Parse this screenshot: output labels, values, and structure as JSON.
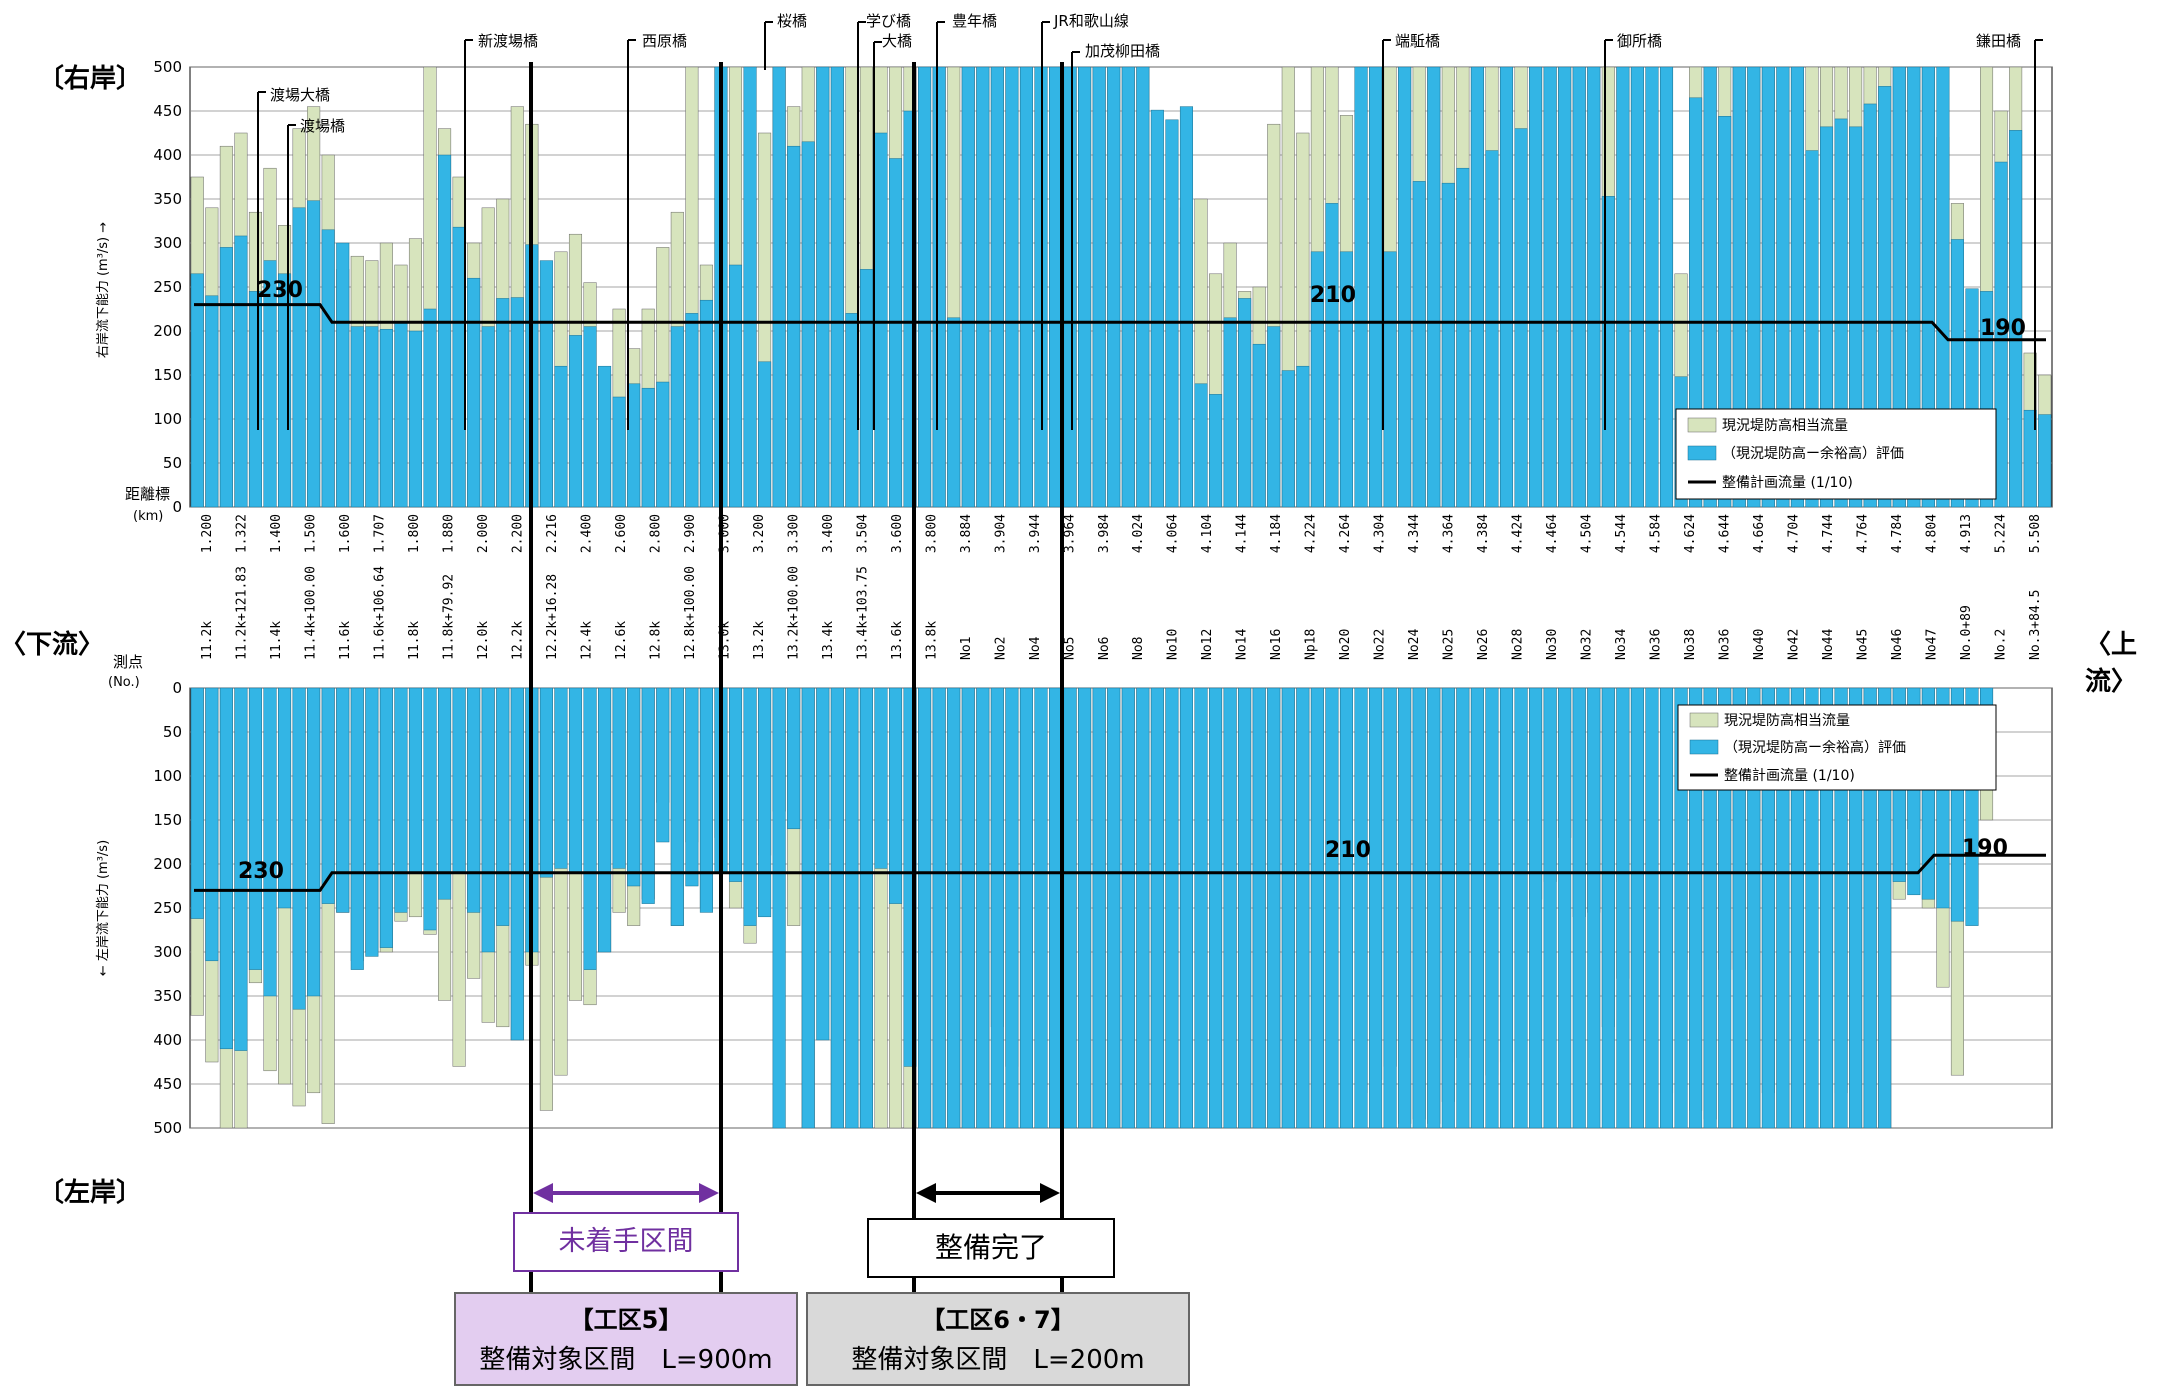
{
  "labels": {
    "right_bank": "〔右岸〕",
    "left_bank": "〔左岸〕",
    "downstream": "〈下流〉",
    "upstream": "〈上流〉",
    "distance_header": "距離標",
    "distance_unit": "(km)",
    "survey_header": "測点",
    "survey_unit": "(No.)"
  },
  "boxes": {
    "unstarted": "未着手区間",
    "completed": "整備完了",
    "zone5_line1": "【工区5】",
    "zone5_line2": "整備対象区間　L=900m",
    "zone67_line1": "【工区6・7】",
    "zone67_line2": "整備対象区間　L=200m"
  },
  "colors": {
    "bar_blue": "#33b5e5",
    "bar_green": "#d7e4bd",
    "purple": "#7030a0",
    "purple_fill": "#e3cdf0",
    "gray_fill": "#d9d9d9"
  },
  "chart_data": [
    {
      "type": "bar",
      "panel": "right_bank",
      "ylabel": "右岸流下能力 (m³/s) →",
      "ylim": [
        0,
        500
      ],
      "yticks": [
        0,
        50,
        100,
        150,
        200,
        250,
        300,
        350,
        400,
        450,
        500
      ],
      "xlabel": "距離標 (km)",
      "x_tick_labels": [
        "1.200",
        "1.322",
        "1.400",
        "1.500",
        "1.600",
        "1.707",
        "1.800",
        "1.880",
        "2.000",
        "2.200",
        "2.216",
        "2.400",
        "2.600",
        "2.800",
        "2.900",
        "3.000",
        "3.200",
        "3.300",
        "3.400",
        "3.504",
        "3.600",
        "3.800",
        "3.884",
        "3.904",
        "3.944",
        "3.964",
        "3.984",
        "4.024",
        "4.064",
        "4.104",
        "4.144",
        "4.184",
        "4.224",
        "4.264",
        "4.304",
        "4.344",
        "4.364",
        "4.384",
        "4.424",
        "4.464",
        "4.504",
        "4.544",
        "4.584",
        "4.624",
        "4.644",
        "4.664",
        "4.704",
        "4.744",
        "4.764",
        "4.784",
        "4.804",
        "4.913",
        "5.224",
        "5.508"
      ],
      "bridges": [
        "渡場大橋",
        "渡場橋",
        "新渡場橋",
        "西原橋",
        "桜橋",
        "学び橋",
        "大橋",
        "豊年橋",
        "JR和歌山線",
        "加茂柳田橋",
        "端駈橋",
        "御所橋",
        "鎌田橋"
      ],
      "series": [
        {
          "name": "現況堤防高相当流量",
          "values": [
            375,
            340,
            410,
            425,
            335,
            385,
            320,
            430,
            455,
            400,
            270,
            285,
            280,
            300,
            275,
            305,
            500,
            430,
            375,
            300,
            340,
            350,
            455,
            435,
            250,
            290,
            310,
            255,
            150,
            225,
            180,
            225,
            295,
            335,
            500,
            275,
            500,
            500,
            350,
            425,
            500,
            455,
            500,
            500,
            500,
            500,
            500,
            500,
            500,
            500,
            500,
            500,
            500,
            500,
            500,
            500,
            500,
            500,
            500,
            500,
            500,
            500,
            500,
            500,
            500,
            500,
            255,
            235,
            340,
            350,
            265,
            300,
            245,
            250,
            435,
            500,
            425,
            500,
            500,
            445,
            500,
            500,
            500,
            500,
            500,
            500,
            500,
            500,
            500,
            500,
            500,
            500,
            500,
            500,
            500,
            500,
            500,
            500,
            500,
            500,
            500,
            500,
            265,
            500,
            500,
            500,
            500,
            500,
            500,
            500,
            500,
            500,
            500,
            500,
            500,
            500,
            500,
            500,
            500,
            500,
            420,
            345,
            245,
            500,
            450,
            500,
            175,
            150
          ]
        },
        {
          "name": "（現況堤防高ー余裕高）評価",
          "values": [
            265,
            240,
            295,
            308,
            245,
            280,
            265,
            340,
            348,
            315,
            300,
            205,
            205,
            202,
            210,
            200,
            225,
            400,
            318,
            260,
            205,
            237,
            238,
            298,
            280,
            160,
            195,
            205,
            160,
            125,
            140,
            135,
            142,
            205,
            220,
            235,
            500,
            275,
            500,
            165,
            500,
            410,
            415,
            500,
            500,
            220,
            270,
            425,
            396,
            450,
            500,
            500,
            215,
            500,
            500,
            500,
            500,
            500,
            500,
            500,
            500,
            500,
            500,
            500,
            500,
            500,
            451,
            440,
            455,
            140,
            128,
            215,
            237,
            185,
            205,
            155,
            160,
            290,
            345,
            290,
            500,
            500,
            290,
            500,
            370,
            500,
            368,
            385,
            500,
            405,
            500,
            430,
            500,
            500,
            500,
            500,
            500,
            353,
            500,
            500,
            500,
            500,
            148,
            465,
            500,
            444,
            500,
            500,
            500,
            500,
            500,
            405,
            432,
            441,
            432,
            458,
            478,
            500,
            500,
            500,
            500,
            304,
            248,
            245,
            392,
            428,
            110,
            105
          ]
        },
        {
          "name": "整備計画流量 (1/10)",
          "segments": [
            {
              "from_km": "1.200",
              "to_km": "1.500",
              "value": 230
            },
            {
              "from_km": "1.500",
              "to_km": "4.804",
              "value": 210
            },
            {
              "from_km": "4.913",
              "to_km": "5.508",
              "value": 190
            }
          ]
        }
      ],
      "annotations": [
        "230",
        "210",
        "190"
      ],
      "legend": [
        "現況堤防高相当流量",
        "（現況堤防高ー余裕高）評価",
        "整備計画流量 (1/10)"
      ]
    },
    {
      "type": "bar",
      "panel": "left_bank",
      "ylabel": "← 左岸流下能力 (m³/s)",
      "ylim": [
        0,
        500
      ],
      "yticks": [
        0,
        50,
        100,
        150,
        200,
        250,
        300,
        350,
        400,
        450,
        500
      ],
      "xlabel": "測点 (No.)",
      "x_tick_labels": [
        "11.2k",
        "11.2k+121.83",
        "11.4k",
        "11.4k+100.00",
        "11.6k",
        "11.6k+106.64",
        "11.8k",
        "11.8k+79.92",
        "12.0k",
        "12.2k",
        "12.2k+16.28",
        "12.4k",
        "12.6k",
        "12.8k",
        "12.8k+100.00",
        "13.0k",
        "13.2k",
        "13.2k+100.00",
        "13.4k",
        "13.4k+103.75",
        "13.6k",
        "13.8k",
        "No1",
        "No2",
        "No4",
        "No5",
        "No6",
        "No8",
        "No10",
        "No12",
        "No14",
        "No16",
        "Np18",
        "No20",
        "No22",
        "No24",
        "No25",
        "No26",
        "No28",
        "No30",
        "No32",
        "No34",
        "No36",
        "No38",
        "No36",
        "No40",
        "No42",
        "No44",
        "No45",
        "No46",
        "No47",
        "No.0+89",
        "No.2",
        "No.3+84.5"
      ],
      "series": [
        {
          "name": "現況堤防高相当流量",
          "values": [
            372,
            425,
            500,
            500,
            335,
            435,
            450,
            475,
            460,
            495,
            255,
            310,
            300,
            300,
            265,
            260,
            280,
            355,
            430,
            330,
            380,
            385,
            400,
            315,
            480,
            440,
            355,
            360,
            300,
            255,
            270,
            240,
            130,
            270,
            175,
            250,
            170,
            250,
            290,
            190,
            140,
            270,
            500,
            160,
            500,
            500,
            500,
            500,
            500,
            500,
            500,
            500,
            500,
            500,
            500,
            385,
            430,
            500,
            500,
            500,
            500,
            500,
            500,
            500,
            500,
            500,
            500,
            500,
            500,
            500,
            500,
            500,
            500,
            500,
            500,
            500,
            500,
            500,
            500,
            500,
            460,
            445,
            430,
            495,
            490,
            495,
            470,
            420,
            500,
            440,
            425,
            300,
            240,
            220,
            170,
            260,
            255,
            385,
            330,
            400,
            500,
            460,
            320,
            480,
            490,
            320,
            320,
            500,
            460,
            500,
            500,
            500,
            500,
            460,
            500,
            500,
            500,
            240,
            160,
            250,
            340,
            440,
            240,
            150
          ]
        },
        {
          "name": "（現況堤防高ー余裕高）評価",
          "values": [
            262,
            310,
            410,
            412,
            320,
            350,
            250,
            365,
            350,
            245,
            255,
            320,
            305,
            295,
            255,
            210,
            275,
            240,
            210,
            255,
            300,
            270,
            400,
            300,
            215,
            205,
            210,
            320,
            300,
            205,
            225,
            245,
            175,
            270,
            225,
            255,
            210,
            220,
            270,
            260,
            500,
            160,
            500,
            400,
            500,
            500,
            500,
            205,
            245,
            430,
            500,
            500,
            500,
            500,
            500,
            500,
            500,
            500,
            500,
            500,
            500,
            500,
            500,
            500,
            500,
            500,
            500,
            500,
            500,
            500,
            500,
            500,
            500,
            500,
            500,
            500,
            500,
            500,
            500,
            500,
            500,
            500,
            500,
            500,
            500,
            500,
            500,
            500,
            500,
            500,
            500,
            500,
            500,
            500,
            500,
            500,
            500,
            500,
            500,
            500,
            500,
            500,
            500,
            500,
            500,
            500,
            500,
            500,
            500,
            500,
            500,
            500,
            500,
            500,
            500,
            500,
            500,
            220,
            235,
            240,
            250,
            265,
            270,
            100
          ]
        },
        {
          "name": "整備計画流量 (1/10)",
          "segments": [
            {
              "from": "11.2k",
              "to": "11.4k+100.00",
              "value": 230
            },
            {
              "from": "11.4k+100.00",
              "to": "No47",
              "value": 210
            },
            {
              "from": "No.0+89",
              "to": "No.3+84.5",
              "value": 190
            }
          ]
        }
      ],
      "annotations": [
        "230",
        "210",
        "190"
      ],
      "legend": [
        "現況堤防高相当流量",
        "（現況堤防高ー余裕高）評価",
        "整備計画流量 (1/10)"
      ]
    }
  ]
}
